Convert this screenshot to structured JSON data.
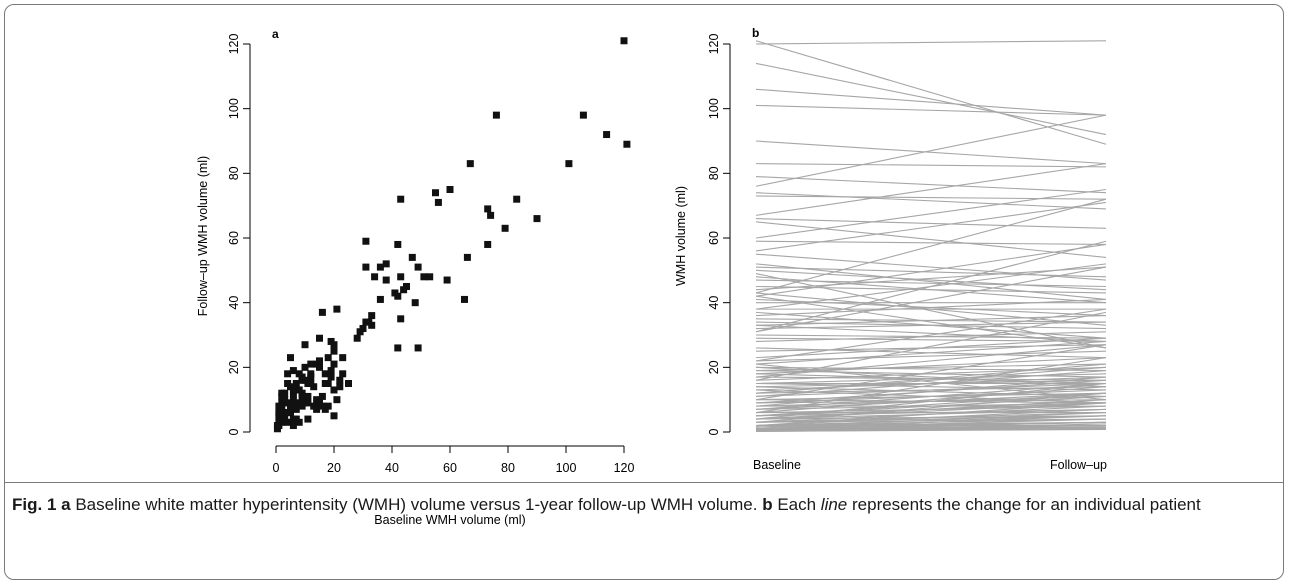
{
  "figure": {
    "caption": {
      "fig_label": "Fig. 1",
      "part_a_label": "a",
      "part_a_text": "Baseline white matter hyperintensity (WMH) volume versus 1-year follow-up WMH volume.",
      "part_b_label": "b",
      "part_b_text_before": "Each",
      "part_b_italic": "line",
      "part_b_text_after": "represents the change for an individual patient"
    }
  },
  "chart_data": [
    {
      "type": "scatter",
      "panel_label": "a",
      "xlabel": "Baseline WMH volume (ml)",
      "ylabel": "Follow–up WMH volume (ml)",
      "xlim": [
        0,
        120
      ],
      "ylim": [
        0,
        120
      ],
      "xticks": [
        0,
        20,
        40,
        60,
        80,
        100,
        120
      ],
      "yticks": [
        0,
        20,
        40,
        60,
        80,
        100,
        120
      ],
      "grid": false,
      "marker_color": "#111111",
      "x": [
        120,
        106,
        114,
        121,
        76,
        101,
        67,
        55,
        60,
        56,
        83,
        73,
        74,
        90,
        79,
        43,
        73,
        66,
        59,
        65,
        31,
        42,
        38,
        36,
        47,
        43,
        45,
        44,
        41,
        49,
        53,
        38,
        34,
        36,
        31,
        33,
        31,
        42,
        48,
        51,
        43,
        33,
        30,
        29,
        32,
        28,
        42,
        49,
        16,
        21,
        15,
        10,
        19,
        20,
        23,
        20,
        18,
        20,
        17,
        19,
        15,
        14,
        12,
        10,
        8,
        5,
        12,
        15,
        9,
        18,
        13,
        4,
        6,
        7,
        10,
        11,
        9,
        12,
        3,
        4,
        8,
        5,
        2,
        2,
        3,
        2,
        6,
        4,
        1,
        2,
        5,
        8,
        3,
        9,
        5,
        7,
        6,
        1,
        1,
        0.5,
        2,
        3,
        1,
        2,
        2,
        0.5,
        1,
        3,
        4,
        2,
        6,
        8,
        7,
        4,
        5,
        10,
        21,
        22,
        19,
        18,
        20,
        11,
        13,
        9,
        14,
        11,
        16,
        15,
        22,
        12,
        9,
        17,
        16,
        23,
        14,
        25,
        7,
        6,
        5,
        11,
        17,
        20
      ],
      "y": [
        121,
        98,
        92,
        89,
        98,
        83,
        83,
        74,
        75,
        71,
        72,
        69,
        67,
        66,
        63,
        72,
        58,
        54,
        47,
        41,
        59,
        58,
        52,
        51,
        54,
        48,
        45,
        44,
        43,
        51,
        48,
        47,
        48,
        41,
        51,
        36,
        34,
        42,
        40,
        48,
        35,
        33,
        32,
        31,
        34,
        29,
        26,
        26,
        37,
        38,
        29,
        27,
        28,
        27,
        23,
        25,
        23,
        21,
        18,
        19,
        20,
        21,
        17,
        20,
        18,
        23,
        21,
        22,
        16,
        15,
        14,
        18,
        19,
        15,
        16,
        15,
        17,
        18,
        12,
        15,
        13,
        14,
        9,
        11,
        10,
        12,
        11,
        9,
        5,
        7,
        8,
        9,
        6,
        8,
        6,
        7,
        4,
        2,
        3,
        1,
        4,
        6,
        8,
        3,
        5,
        2,
        6,
        4,
        3,
        5,
        2,
        3,
        4,
        6,
        8,
        9,
        10,
        14,
        17,
        8,
        13,
        4,
        8,
        12,
        10,
        9,
        11,
        9,
        16,
        15,
        11,
        15,
        8,
        18,
        7,
        15,
        9,
        13,
        9,
        11,
        7,
        5
      ]
    },
    {
      "type": "line",
      "panel_label": "b",
      "ylabel": "WMH volume (ml)",
      "categories": [
        "Baseline",
        "Follow–up"
      ],
      "ylim": [
        0,
        120
      ],
      "yticks": [
        0,
        20,
        40,
        60,
        80,
        100,
        120
      ],
      "grid": false,
      "line_color": "#a6a6a6",
      "series": [
        {
          "values": [
            120,
            121
          ]
        },
        {
          "values": [
            106,
            98
          ]
        },
        {
          "values": [
            114,
            92
          ]
        },
        {
          "values": [
            121,
            89
          ]
        },
        {
          "values": [
            101,
            98
          ]
        },
        {
          "values": [
            90,
            83
          ]
        },
        {
          "values": [
            83,
            82
          ]
        },
        {
          "values": [
            79,
            74
          ]
        },
        {
          "values": [
            76,
            98
          ]
        },
        {
          "values": [
            73,
            72
          ]
        },
        {
          "values": [
            74,
            69
          ]
        },
        {
          "values": [
            67,
            83
          ]
        },
        {
          "values": [
            66,
            63
          ]
        },
        {
          "values": [
            65,
            54
          ]
        },
        {
          "values": [
            60,
            75
          ]
        },
        {
          "values": [
            59,
            58
          ]
        },
        {
          "values": [
            56,
            71
          ]
        },
        {
          "values": [
            55,
            47
          ]
        },
        {
          "values": [
            52,
            41
          ]
        },
        {
          "values": [
            51,
            48
          ]
        },
        {
          "values": [
            50,
            44
          ]
        },
        {
          "values": [
            49,
            26
          ]
        },
        {
          "values": [
            48,
            40
          ]
        },
        {
          "values": [
            47,
            45
          ]
        },
        {
          "values": [
            45,
            43
          ]
        },
        {
          "values": [
            44,
            51
          ]
        },
        {
          "values": [
            43,
            72
          ]
        },
        {
          "values": [
            43,
            33
          ]
        },
        {
          "values": [
            42,
            58
          ]
        },
        {
          "values": [
            42,
            26
          ]
        },
        {
          "values": [
            41,
            36
          ]
        },
        {
          "values": [
            40,
            40
          ]
        },
        {
          "values": [
            38,
            38
          ]
        },
        {
          "values": [
            38,
            52
          ]
        },
        {
          "values": [
            37,
            29
          ]
        },
        {
          "values": [
            36,
            41
          ]
        },
        {
          "values": [
            35,
            34
          ]
        },
        {
          "values": [
            34,
            32
          ]
        },
        {
          "values": [
            33,
            36
          ]
        },
        {
          "values": [
            33,
            28
          ]
        },
        {
          "values": [
            32,
            34
          ]
        },
        {
          "values": [
            31,
            51
          ]
        },
        {
          "values": [
            31,
            59
          ]
        },
        {
          "values": [
            30,
            29
          ]
        },
        {
          "values": [
            29,
            28
          ]
        },
        {
          "values": [
            28,
            31
          ]
        },
        {
          "values": [
            26,
            23
          ]
        },
        {
          "values": [
            25,
            27
          ]
        },
        {
          "values": [
            23,
            29
          ]
        },
        {
          "values": [
            22,
            38
          ]
        },
        {
          "values": [
            22,
            25
          ]
        },
        {
          "values": [
            21,
            28
          ]
        },
        {
          "values": [
            21,
            10
          ]
        },
        {
          "values": [
            20,
            19
          ]
        },
        {
          "values": [
            20,
            14
          ]
        },
        {
          "values": [
            19,
            21
          ]
        },
        {
          "values": [
            19,
            17
          ]
        },
        {
          "values": [
            18,
            23
          ]
        },
        {
          "values": [
            18,
            15
          ]
        },
        {
          "values": [
            17,
            16
          ]
        },
        {
          "values": [
            17,
            27
          ]
        },
        {
          "values": [
            16,
            37
          ]
        },
        {
          "values": [
            16,
            20
          ]
        },
        {
          "values": [
            15,
            18
          ]
        },
        {
          "values": [
            15,
            15
          ]
        },
        {
          "values": [
            15,
            13
          ]
        },
        {
          "values": [
            14,
            16
          ]
        },
        {
          "values": [
            14,
            11
          ]
        },
        {
          "values": [
            13,
            17
          ]
        },
        {
          "values": [
            13,
            9
          ]
        },
        {
          "values": [
            12,
            20
          ]
        },
        {
          "values": [
            12,
            14
          ]
        },
        {
          "values": [
            12,
            21
          ]
        },
        {
          "values": [
            11,
            15
          ]
        },
        {
          "values": [
            11,
            19
          ]
        },
        {
          "values": [
            10,
            27
          ]
        },
        {
          "values": [
            10,
            12
          ]
        },
        {
          "values": [
            10,
            9
          ]
        },
        {
          "values": [
            9,
            16
          ]
        },
        {
          "values": [
            9,
            10
          ]
        },
        {
          "values": [
            9,
            13
          ]
        },
        {
          "values": [
            8,
            17
          ]
        },
        {
          "values": [
            8,
            8
          ]
        },
        {
          "values": [
            8,
            11
          ]
        },
        {
          "values": [
            7,
            15
          ]
        },
        {
          "values": [
            7,
            9
          ]
        },
        {
          "values": [
            7,
            12
          ]
        },
        {
          "values": [
            6,
            23
          ]
        },
        {
          "values": [
            6,
            8
          ]
        },
        {
          "values": [
            6,
            14
          ]
        },
        {
          "values": [
            6,
            6
          ]
        },
        {
          "values": [
            5,
            9
          ]
        },
        {
          "values": [
            5,
            12
          ]
        },
        {
          "values": [
            5,
            7
          ]
        },
        {
          "values": [
            5,
            11
          ]
        },
        {
          "values": [
            4,
            15
          ]
        },
        {
          "values": [
            4,
            7
          ]
        },
        {
          "values": [
            4,
            5
          ]
        },
        {
          "values": [
            4,
            9
          ]
        },
        {
          "values": [
            4,
            10
          ]
        },
        {
          "values": [
            3,
            6
          ]
        },
        {
          "values": [
            3,
            8
          ]
        },
        {
          "values": [
            3,
            12
          ]
        },
        {
          "values": [
            3,
            4
          ]
        },
        {
          "values": [
            3,
            5
          ]
        },
        {
          "values": [
            2,
            5
          ]
        },
        {
          "values": [
            2,
            3
          ]
        },
        {
          "values": [
            2,
            7
          ]
        },
        {
          "values": [
            2,
            9
          ]
        },
        {
          "values": [
            2,
            4
          ]
        },
        {
          "values": [
            2,
            2
          ]
        },
        {
          "values": [
            1.5,
            3
          ]
        },
        {
          "values": [
            1.5,
            6
          ]
        },
        {
          "values": [
            1,
            2
          ]
        },
        {
          "values": [
            1,
            4
          ]
        },
        {
          "values": [
            1,
            3
          ]
        },
        {
          "values": [
            1,
            1.5
          ]
        },
        {
          "values": [
            1,
            5
          ]
        },
        {
          "values": [
            0.8,
            2
          ]
        },
        {
          "values": [
            0.8,
            1
          ]
        },
        {
          "values": [
            0.6,
            3
          ]
        },
        {
          "values": [
            0.5,
            1.5
          ]
        },
        {
          "values": [
            0.5,
            2
          ]
        },
        {
          "values": [
            0.4,
            1
          ]
        },
        {
          "values": [
            0.3,
            1.2
          ]
        },
        {
          "values": [
            0.3,
            2.5
          ]
        },
        {
          "values": [
            0.2,
            0.8
          ]
        },
        {
          "values": [
            0.2,
            1
          ]
        }
      ]
    }
  ]
}
